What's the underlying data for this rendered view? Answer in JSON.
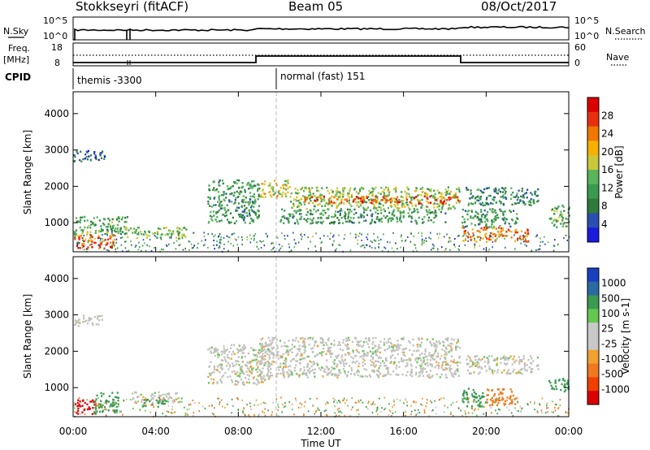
{
  "header": {
    "title": "Stokkseyri (fitACF)",
    "beam": "Beam 05",
    "date": "08/Oct/2017"
  },
  "top_panels": {
    "nsky": {
      "label": "N.Sky",
      "tick_top": "10^5",
      "tick_bottom": "10^0",
      "right_tick_top": "10^5",
      "right_tick_bottom": "10^0",
      "right_label": "N.Search"
    },
    "freq": {
      "label_line1": "Freq.",
      "label_line2": "[MHz]",
      "tick_top": "18",
      "tick_bottom": "8",
      "right_tick_top": "60",
      "right_tick_bottom": "0",
      "right_label": "Nave"
    },
    "cpid": {
      "label": "CPID",
      "mode1": "themis -3300",
      "mode2": "normal (fast) 151"
    }
  },
  "colors": {
    "power": [
      "#1a1adc",
      "#2a4fb0",
      "#2f7a3c",
      "#3a9a50",
      "#5ab45a",
      "#c8c83c",
      "#f5b000",
      "#f07800",
      "#e83010",
      "#dc0000"
    ],
    "velocity": [
      "#dc0000",
      "#f04000",
      "#f07820",
      "#f0a030",
      "#c8c8c8",
      "#c8c8c8",
      "#64c850",
      "#3a9a50",
      "#2a6aa0",
      "#1a40c0"
    ],
    "ground_scatter": "#c0c0bc"
  },
  "chart_data": [
    {
      "type": "heatmap",
      "name": "power-panel",
      "ylabel": "Slant Range [km]",
      "ylim": [
        200,
        4600
      ],
      "yticks": [
        "1000",
        "2000",
        "3000",
        "4000"
      ],
      "xticks": [
        "00:00",
        "04:00",
        "08:00",
        "12:00",
        "16:00",
        "20:00",
        "00:00"
      ],
      "xlim_hours": [
        0,
        24
      ],
      "colorbar": {
        "label": "Power [dB]",
        "ticks": [
          "4",
          "8",
          "12",
          "16",
          "20",
          "24",
          "28"
        ]
      },
      "bands": [
        {
          "t0": 0.0,
          "t1": 2.0,
          "r0": 300,
          "r1": 700,
          "db": 24
        },
        {
          "t0": 0.0,
          "t1": 2.6,
          "r0": 700,
          "r1": 1200,
          "db": 12
        },
        {
          "t0": 0.0,
          "t1": 1.5,
          "r0": 2700,
          "r1": 3000,
          "db": 6
        },
        {
          "t0": 2.5,
          "t1": 5.5,
          "r0": 600,
          "r1": 900,
          "db": 14
        },
        {
          "t0": 6.5,
          "t1": 9.0,
          "r0": 1000,
          "r1": 2200,
          "db": 10
        },
        {
          "t0": 9.0,
          "t1": 10.5,
          "r0": 1700,
          "r1": 2200,
          "db": 18
        },
        {
          "t0": 10.5,
          "t1": 18.7,
          "r0": 1400,
          "r1": 2000,
          "db": 14
        },
        {
          "t0": 11.0,
          "t1": 18.7,
          "r0": 1550,
          "r1": 1750,
          "db": 24
        },
        {
          "t0": 10.0,
          "t1": 18.0,
          "r0": 1000,
          "r1": 1400,
          "db": 10
        },
        {
          "t0": 18.8,
          "t1": 22.0,
          "r0": 500,
          "r1": 900,
          "db": 22
        },
        {
          "t0": 18.8,
          "t1": 21.5,
          "r0": 900,
          "r1": 1400,
          "db": 10
        },
        {
          "t0": 19.0,
          "t1": 22.5,
          "r0": 1500,
          "r1": 2000,
          "db": 8
        },
        {
          "t0": 23.0,
          "t1": 24.0,
          "r0": 900,
          "r1": 1500,
          "db": 12
        }
      ]
    },
    {
      "type": "heatmap",
      "name": "velocity-panel",
      "ylabel": "Slant Range [km]",
      "ylim": [
        200,
        4600
      ],
      "yticks": [
        "1000",
        "2000",
        "3000",
        "4000"
      ],
      "xticks": [
        "00:00",
        "04:00",
        "08:00",
        "12:00",
        "16:00",
        "20:00",
        "00:00"
      ],
      "xlabel": "Time UT",
      "xlim_hours": [
        0,
        24
      ],
      "colorbar": {
        "label": "Velocity [m s-1]",
        "ticks": [
          "1000",
          "500",
          "100",
          "25",
          "-25",
          "-100",
          "-500",
          "-1000"
        ]
      },
      "bands": [
        {
          "t0": 0.0,
          "t1": 1.0,
          "r0": 300,
          "r1": 700,
          "vel": -600
        },
        {
          "t0": 1.0,
          "t1": 2.2,
          "r0": 300,
          "r1": 900,
          "vel": 150
        },
        {
          "t0": 0.0,
          "t1": 1.5,
          "r0": 2700,
          "r1": 3000,
          "vel": 0
        },
        {
          "t0": 2.8,
          "t1": 5.0,
          "r0": 600,
          "r1": 900,
          "vel": 0
        },
        {
          "t0": 3.3,
          "t1": 4.5,
          "r0": 500,
          "r1": 700,
          "vel": 150
        },
        {
          "t0": 6.5,
          "t1": 9.5,
          "r0": 1100,
          "r1": 2200,
          "vel": 0
        },
        {
          "t0": 9.0,
          "t1": 18.7,
          "r0": 1300,
          "r1": 2400,
          "vel": 0
        },
        {
          "t0": 18.8,
          "t1": 20.0,
          "r0": 500,
          "r1": 1000,
          "vel": 150
        },
        {
          "t0": 20.0,
          "t1": 21.5,
          "r0": 500,
          "r1": 1000,
          "vel": -300
        },
        {
          "t0": 19.0,
          "t1": 22.5,
          "r0": 1400,
          "r1": 1900,
          "vel": 0
        },
        {
          "t0": 23.0,
          "t1": 24.0,
          "r0": 900,
          "r1": 1300,
          "vel": 150
        }
      ]
    }
  ]
}
